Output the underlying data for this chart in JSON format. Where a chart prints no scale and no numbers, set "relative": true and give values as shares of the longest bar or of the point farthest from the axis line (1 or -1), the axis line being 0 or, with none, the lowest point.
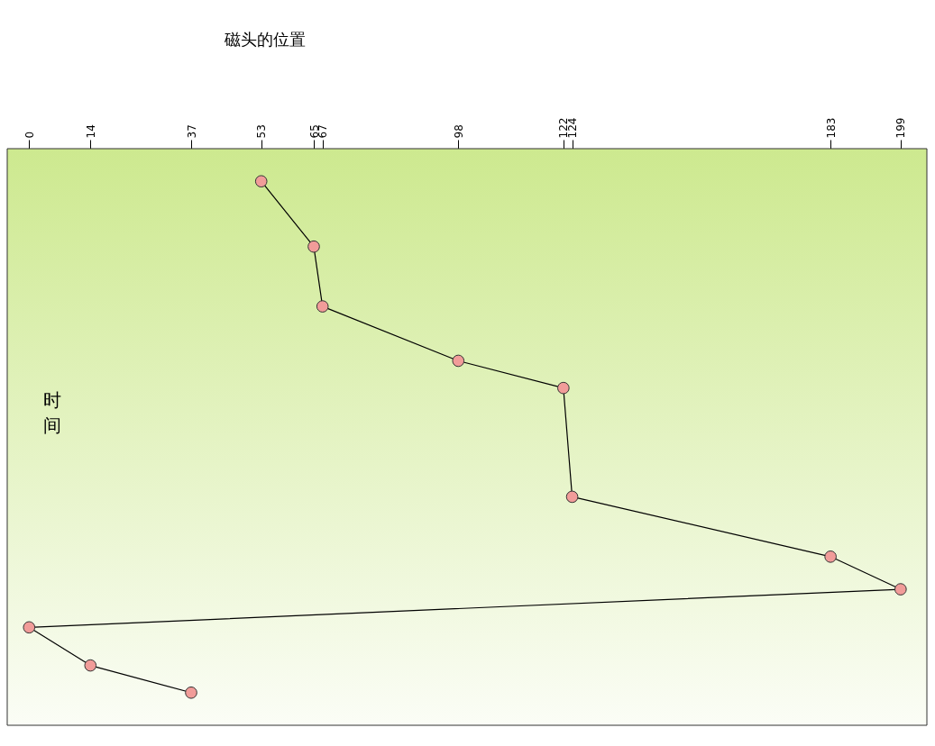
{
  "chart_data": {
    "type": "line",
    "relative": true,
    "x": [
      53,
      65,
      67,
      98,
      122,
      124,
      183,
      199,
      0,
      14,
      37
    ],
    "series": [
      {
        "color": "#000000",
        "values": [
          -0.06,
          -0.18,
          -0.29,
          -0.39,
          -0.44,
          -0.64,
          -0.75,
          -0.81,
          -0.88,
          -0.95,
          -1
        ]
      }
    ],
    "xlim": [
      -5,
      205
    ],
    "xticks": [
      0,
      14,
      37,
      53,
      65,
      67,
      98,
      122,
      124,
      183,
      199
    ],
    "marker": "circle",
    "line_style": "solid",
    "grid": false,
    "tick_labels": "x",
    "annotations": [
      "磁头的位置",
      "时间"
    ]
  }
}
